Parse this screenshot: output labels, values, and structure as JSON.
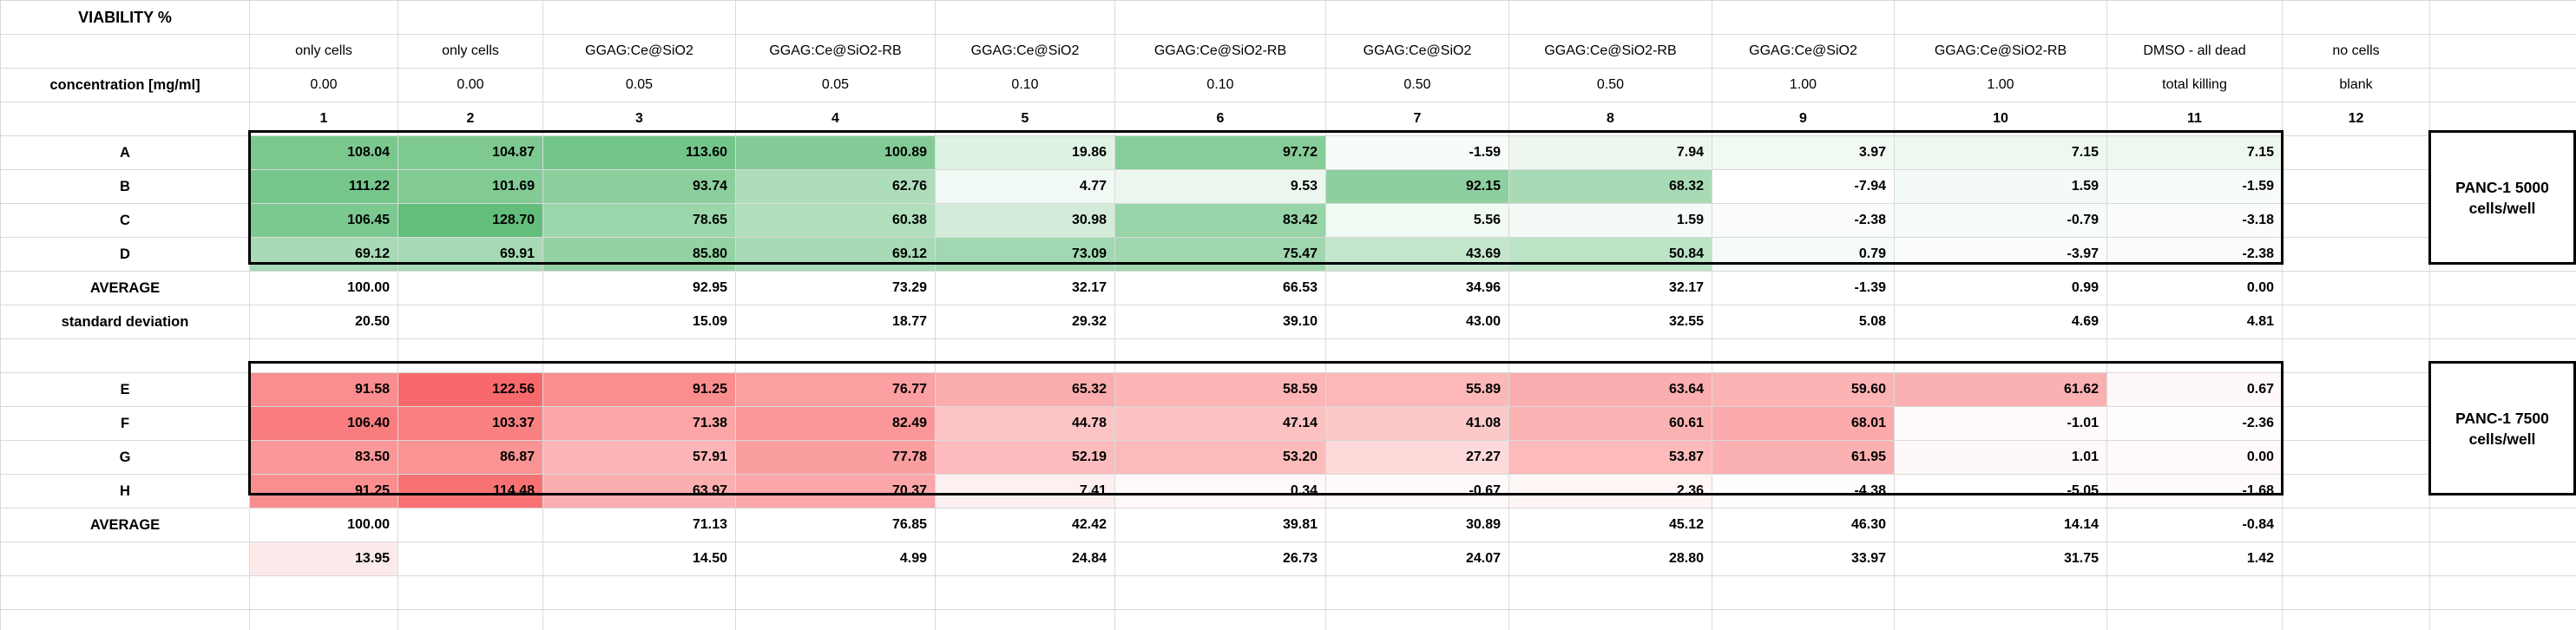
{
  "sheet": {
    "title": "VIABILITY %",
    "side_labels": {
      "top": {
        "line1": "PANC-1 5000",
        "line2": "cells/well"
      },
      "bottom": {
        "line1": "PANC-1 7500",
        "line2": "cells/well"
      }
    },
    "colors": {
      "grid_line": "#d9d9d9",
      "block_border": "#000000",
      "green_scale_max": "#63BE7B",
      "red_scale_max": "#F8696B",
      "pink_cell": "#FCE9E9"
    },
    "scales": {
      "green": {
        "color": "#63BE7B",
        "min": -7.94,
        "max": 128.7
      },
      "red": {
        "color": "#F8696B",
        "min": -5.05,
        "max": 122.56
      }
    },
    "rows": [
      {
        "name": "title",
        "label": "VIABILITY %",
        "align": "center",
        "bold": false,
        "cells": []
      },
      {
        "name": "treatments",
        "label": "",
        "align": "center",
        "bold": false,
        "cells": [
          "only cells",
          "only cells",
          "GGAG:Ce@SiO2",
          "GGAG:Ce@SiO2-RB",
          "GGAG:Ce@SiO2",
          "GGAG:Ce@SiO2-RB",
          "GGAG:Ce@SiO2",
          "GGAG:Ce@SiO2-RB",
          "GGAG:Ce@SiO2",
          "GGAG:Ce@SiO2-RB",
          "DMSO - all dead",
          "no cells"
        ]
      },
      {
        "name": "concentration",
        "label": "concentration [mg/ml]",
        "align": "center",
        "bold": false,
        "cells": [
          "0.00",
          "0.00",
          "0.05",
          "0.05",
          "0.10",
          "0.10",
          "0.50",
          "0.50",
          "1.00",
          "1.00",
          "total killing",
          "blank"
        ]
      },
      {
        "name": "col-numbers",
        "label": "",
        "align": "center",
        "bold": true,
        "cells": [
          "1",
          "2",
          "3",
          "4",
          "5",
          "6",
          "7",
          "8",
          "9",
          "10",
          "11",
          "12"
        ]
      },
      {
        "name": "A",
        "label": "A",
        "align": "right",
        "bold": true,
        "scale": "green",
        "cells": [
          "108.04",
          "104.87",
          "113.60",
          "100.89",
          "19.86",
          "97.72",
          "-1.59",
          "7.94",
          "3.97",
          "7.15",
          "7.15",
          ""
        ]
      },
      {
        "name": "B",
        "label": "B",
        "align": "right",
        "bold": true,
        "scale": "green",
        "cells": [
          "111.22",
          "101.69",
          "93.74",
          "62.76",
          "4.77",
          "9.53",
          "92.15",
          "68.32",
          "-7.94",
          "1.59",
          "-1.59",
          ""
        ]
      },
      {
        "name": "C",
        "label": "C",
        "align": "right",
        "bold": true,
        "scale": "green",
        "cells": [
          "106.45",
          "128.70",
          "78.65",
          "60.38",
          "30.98",
          "83.42",
          "5.56",
          "1.59",
          "-2.38",
          "-0.79",
          "-3.18",
          ""
        ]
      },
      {
        "name": "D",
        "label": "D",
        "align": "right",
        "bold": true,
        "scale": "green",
        "cells": [
          "69.12",
          "69.91",
          "85.80",
          "69.12",
          "73.09",
          "75.47",
          "43.69",
          "50.84",
          "0.79",
          "-3.97",
          "-2.38",
          ""
        ]
      },
      {
        "name": "average-1",
        "label": "AVERAGE",
        "align": "right",
        "bold": true,
        "cells": [
          "100.00",
          "",
          "92.95",
          "73.29",
          "32.17",
          "66.53",
          "34.96",
          "32.17",
          "-1.39",
          "0.99",
          "0.00",
          ""
        ]
      },
      {
        "name": "stdev-1",
        "label": "standard deviation",
        "align": "right",
        "bold": true,
        "cells": [
          "20.50",
          "",
          "15.09",
          "18.77",
          "29.32",
          "39.10",
          "43.00",
          "32.55",
          "5.08",
          "4.69",
          "4.81",
          ""
        ]
      },
      {
        "name": "spacer-1",
        "label": "",
        "align": "right",
        "bold": false,
        "cells": []
      },
      {
        "name": "E",
        "label": "E",
        "align": "right",
        "bold": true,
        "scale": "red",
        "cells": [
          "91.58",
          "122.56",
          "91.25",
          "76.77",
          "65.32",
          "58.59",
          "55.89",
          "63.64",
          "59.60",
          "61.62",
          "0.67",
          ""
        ]
      },
      {
        "name": "F",
        "label": "F",
        "align": "right",
        "bold": true,
        "scale": "red",
        "cells": [
          "106.40",
          "103.37",
          "71.38",
          "82.49",
          "44.78",
          "47.14",
          "41.08",
          "60.61",
          "68.01",
          "-1.01",
          "-2.36",
          ""
        ]
      },
      {
        "name": "G",
        "label": "G",
        "align": "right",
        "bold": true,
        "scale": "red",
        "cells": [
          "83.50",
          "86.87",
          "57.91",
          "77.78",
          "52.19",
          "53.20",
          "27.27",
          "53.87",
          "61.95",
          "1.01",
          "0.00",
          ""
        ]
      },
      {
        "name": "H",
        "label": "H",
        "align": "right",
        "bold": true,
        "scale": "red",
        "cells": [
          "91.25",
          "114.48",
          "63.97",
          "70.37",
          "7.41",
          "0.34",
          "-0.67",
          "2.36",
          "-4.38",
          "-5.05",
          "-1.68",
          ""
        ]
      },
      {
        "name": "average-2",
        "label": "AVERAGE",
        "align": "right",
        "bold": true,
        "cells": [
          "100.00",
          "",
          "71.13",
          "76.85",
          "42.42",
          "39.81",
          "30.89",
          "45.12",
          "46.30",
          "14.14",
          "-0.84",
          ""
        ]
      },
      {
        "name": "stdev-2",
        "label": "",
        "align": "right",
        "bold": true,
        "cell_bg": {
          "0": "#FCE9E9"
        },
        "cells": [
          "13.95",
          "",
          "14.50",
          "4.99",
          "24.84",
          "26.73",
          "24.07",
          "28.80",
          "33.97",
          "31.75",
          "1.42",
          ""
        ]
      },
      {
        "name": "spacer-2",
        "label": "",
        "align": "right",
        "bold": false,
        "cells": []
      },
      {
        "name": "spacer-3",
        "label": "",
        "align": "right",
        "bold": false,
        "cells": []
      }
    ]
  }
}
